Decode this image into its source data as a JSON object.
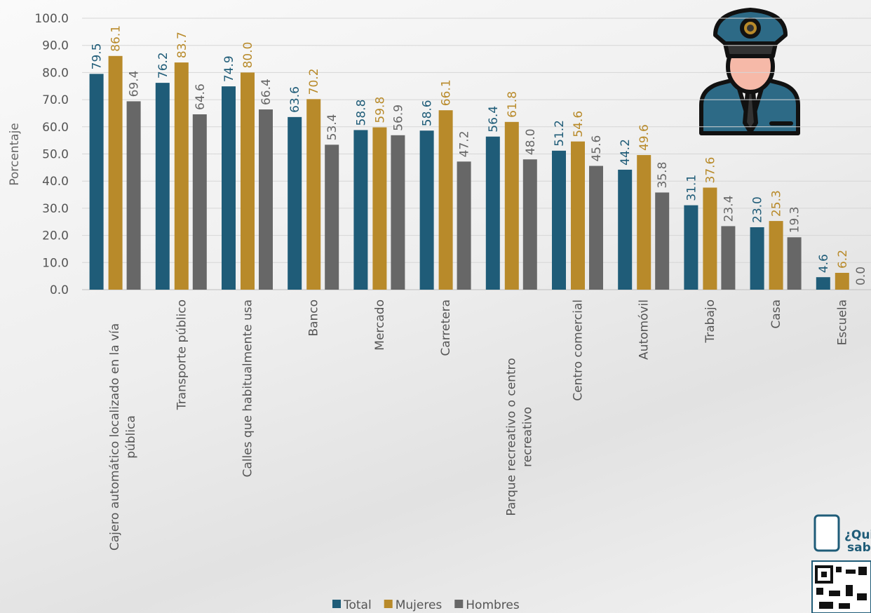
{
  "chart_data": {
    "type": "bar",
    "y_label": "Porcentaje",
    "categories": [
      "Cajero automático localizado en la vía pública",
      "Transporte público",
      "Calles que habitualmente usa",
      "Banco",
      "Mercado",
      "Carretera",
      "Parque recreativo o centro recreativo",
      "Centro comercial",
      "Automóvil",
      "Trabajo",
      "Casa",
      "Escuela"
    ],
    "series": [
      {
        "name": "Total",
        "color": "#1f5c78",
        "values": [
          79.5,
          76.2,
          74.9,
          63.6,
          58.8,
          58.6,
          56.4,
          51.2,
          44.2,
          31.1,
          23.0,
          4.6
        ],
        "value_labels": [
          "79.5",
          "76.2",
          "74.9",
          "63.6",
          "58.8",
          "58.6",
          "56.4",
          "51.2",
          "44.2",
          "31.1",
          "23.0",
          "4.6"
        ]
      },
      {
        "name": "Mujeres",
        "color": "#b88a2a",
        "values": [
          86.1,
          83.7,
          80.0,
          70.2,
          59.8,
          66.1,
          61.8,
          54.6,
          49.6,
          37.6,
          25.3,
          6.2
        ],
        "value_labels": [
          "86.1",
          "83.7",
          "80.0",
          "70.2",
          "59.8",
          "66.1",
          "61.8",
          "54.6",
          "49.6",
          "37.6",
          "25.3",
          "6.2"
        ]
      },
      {
        "name": "Hombres",
        "color": "#676767",
        "values": [
          69.4,
          64.6,
          66.4,
          53.4,
          56.9,
          47.2,
          48.0,
          45.6,
          35.8,
          23.4,
          19.3,
          0.0
        ],
        "value_labels": [
          "69.4",
          "64.6",
          "66.4",
          "53.4",
          "56.9",
          "47.2",
          "48.0",
          "45.6",
          "35.8",
          "23.4",
          "19.3",
          "0.0"
        ]
      }
    ],
    "ylim": [
      0,
      100
    ],
    "yticks": [
      {
        "value": 0,
        "label": "0.0"
      },
      {
        "value": 10,
        "label": "10.0"
      },
      {
        "value": 20,
        "label": "20.0"
      },
      {
        "value": 30,
        "label": "30.0"
      },
      {
        "value": 40,
        "label": "40.0"
      },
      {
        "value": 50,
        "label": "50.0"
      },
      {
        "value": 60,
        "label": "60.0"
      },
      {
        "value": 70,
        "label": "70.0"
      },
      {
        "value": 80,
        "label": "80.0"
      },
      {
        "value": 90,
        "label": "90.0"
      },
      {
        "value": 100,
        "label": "100.0"
      }
    ],
    "grid": true
  },
  "badge": {
    "lines": [
      "¿Qui",
      "sabe"
    ]
  }
}
